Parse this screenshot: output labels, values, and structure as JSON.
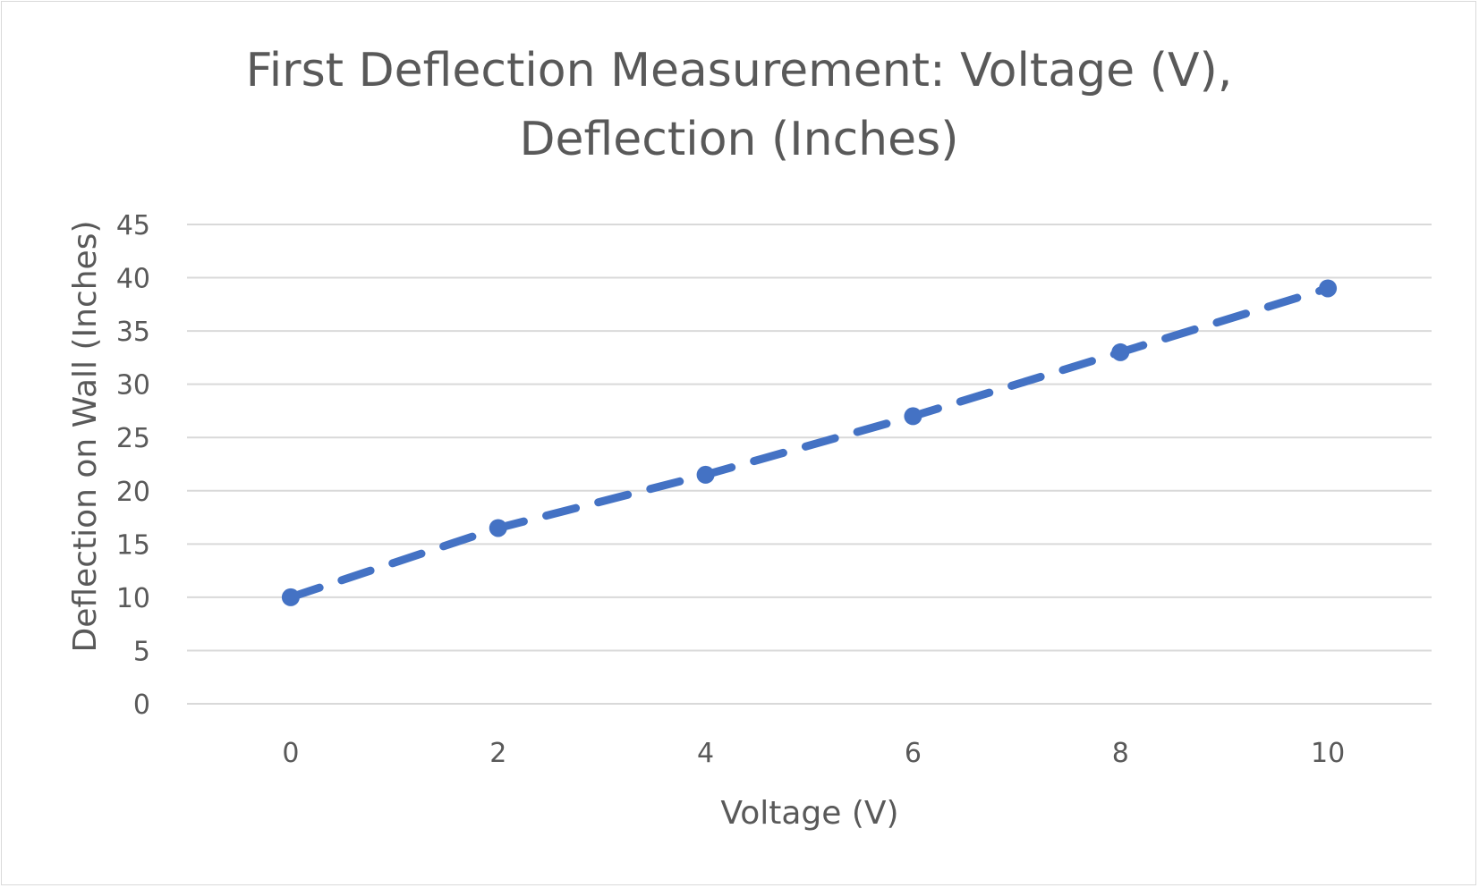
{
  "chart_data": {
    "type": "line",
    "title": [
      "First Deflection Measurement: Voltage (V),",
      "Deflection (Inches)"
    ],
    "xlabel": "Voltage (V)",
    "ylabel": "Deflection on Wall (Inches)",
    "x": [
      0,
      2,
      4,
      6,
      8,
      10
    ],
    "series": [
      {
        "values": [
          10,
          16.5,
          21.5,
          27,
          33,
          39
        ]
      }
    ],
    "xlim": [
      -1,
      11
    ],
    "ylim": [
      0,
      45
    ],
    "xticks": [
      "0",
      "2",
      "4",
      "6",
      "8",
      "10"
    ],
    "yticks": [
      "0",
      "5",
      "10",
      "15",
      "20",
      "25",
      "30",
      "35",
      "40",
      "45"
    ],
    "grid": "horizontal",
    "line_style": "dashed",
    "colors": {
      "series": "#4472c4",
      "grid": "#d9d9d9",
      "text": "#595959"
    }
  }
}
